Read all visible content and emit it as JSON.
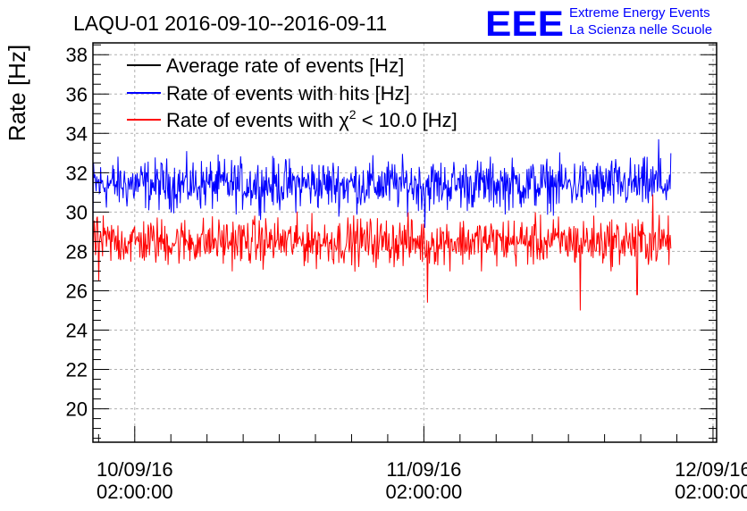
{
  "header": {
    "title": "LAQU-01 2016-09-10--2016-09-11",
    "logo_text": "EEE",
    "logo_line1": "Extreme Energy Events",
    "logo_line2": "La Scienza nelle Scuole"
  },
  "colors": {
    "average": "#000000",
    "hits": "#0000ff",
    "chi2": "#ff0000",
    "logo": "#0000ff",
    "grid": "#b0b0b0"
  },
  "chart_data": {
    "type": "line",
    "title": "LAQU-01 2016-09-10--2016-09-11",
    "xlabel": "",
    "ylabel": "Rate [Hz]",
    "x_unit": "hours since 2016-09-10 02:00:00",
    "xlim": [
      -3.47,
      48.3
    ],
    "ylim": [
      18.3,
      38.6
    ],
    "x_ticks": [
      {
        "x": 0,
        "date": "10/09/16",
        "time": "02:00:00"
      },
      {
        "x": 24,
        "date": "11/09/16",
        "time": "02:00:00"
      },
      {
        "x": 48,
        "date": "12/09/16",
        "time": "02:00:00"
      }
    ],
    "y_ticks": [
      20,
      22,
      24,
      26,
      28,
      30,
      32,
      34,
      36,
      38
    ],
    "grid": true,
    "legend": {
      "position": "top-left",
      "entries": [
        {
          "series": "average",
          "label": "Average rate of events [Hz]"
        },
        {
          "series": "hits",
          "label": "Rate of events with hits [Hz]"
        },
        {
          "series": "chi2",
          "label_pre": "Rate of events with ",
          "label_chi": "χ",
          "label_sup": "2",
          "label_post": " < 10.0 [Hz]"
        }
      ]
    },
    "series": [
      {
        "name": "Rate of events with hits [Hz]",
        "key": "hits",
        "x_start": -3.8,
        "x_end": 44.5,
        "mean": 31.4,
        "noise_range": [
          29.5,
          33.3
        ],
        "extremes": [
          {
            "x": 43.5,
            "y": 33.7
          },
          {
            "x": 24.1,
            "y": 29.2
          },
          {
            "x": -3.5,
            "y": 29.3
          }
        ]
      },
      {
        "name": "Rate of events with χ² < 10.0 [Hz]",
        "key": "chi2",
        "x_start": -3.8,
        "x_end": 44.5,
        "mean": 28.5,
        "noise_range": [
          26.6,
          30.2
        ],
        "extremes": [
          {
            "x": 24.3,
            "y": 25.4
          },
          {
            "x": 37.0,
            "y": 25.0
          },
          {
            "x": 41.7,
            "y": 25.8
          },
          {
            "x": -3.0,
            "y": 26.5
          },
          {
            "x": 43.0,
            "y": 30.9
          }
        ]
      }
    ]
  }
}
